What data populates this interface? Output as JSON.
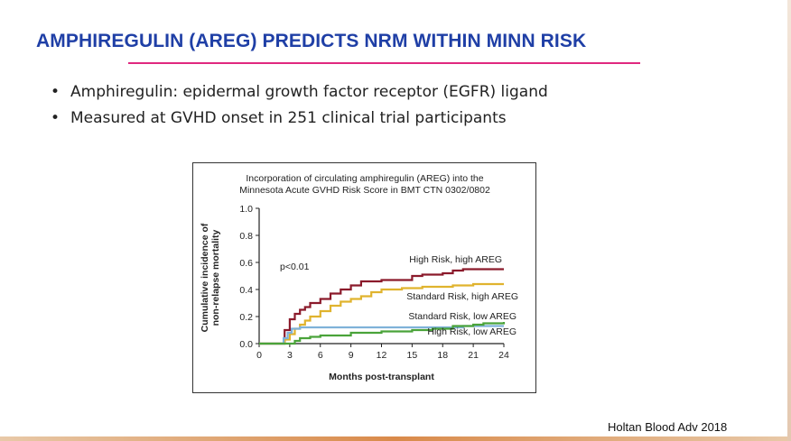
{
  "slide": {
    "title": "AMPHIREGULIN (AREG) PREDICTS NRM WITHIN MINN RISK",
    "bullets": [
      "Amphiregulin: epidermal growth factor receptor (EGFR) ligand",
      "Measured at GVHD onset in 251 clinical trial participants"
    ],
    "citation": "Holtan Blood Adv 2018"
  },
  "colors": {
    "title": "#1f3fa6",
    "underline": "#e0287f"
  },
  "chart_data": {
    "type": "line",
    "step": true,
    "title_lines": [
      "Incorporation of circulating amphiregulin (AREG) into the",
      "Minnesota Acute GVHD Risk Score in BMT CTN 0302/0802"
    ],
    "xlabel": "Months post-transplant",
    "ylabel_lines": [
      "Cumulative incidence of",
      "non-relapse mortality"
    ],
    "xlim": [
      0,
      24
    ],
    "ylim": [
      0,
      1.0
    ],
    "xticks": [
      0,
      3,
      6,
      9,
      12,
      15,
      18,
      21,
      24
    ],
    "yticks": [
      0.0,
      0.2,
      0.4,
      0.6,
      0.8,
      1.0
    ],
    "ytick_labels": [
      "0.0",
      "0.2",
      "0.4",
      "0.6",
      "0.8",
      "1.0"
    ],
    "grid": false,
    "annotation": "p<0.01",
    "series": [
      {
        "name": "High Risk, high AREG",
        "color": "#8b1a2b",
        "points": [
          [
            0,
            0
          ],
          [
            2,
            0
          ],
          [
            2.5,
            0.1
          ],
          [
            3,
            0.18
          ],
          [
            3.5,
            0.22
          ],
          [
            4,
            0.25
          ],
          [
            4.5,
            0.27
          ],
          [
            5,
            0.3
          ],
          [
            6,
            0.33
          ],
          [
            7,
            0.37
          ],
          [
            8,
            0.4
          ],
          [
            9,
            0.43
          ],
          [
            10,
            0.46
          ],
          [
            12,
            0.47
          ],
          [
            14,
            0.47
          ],
          [
            15,
            0.5
          ],
          [
            16,
            0.51
          ],
          [
            18,
            0.52
          ],
          [
            19,
            0.54
          ],
          [
            20,
            0.55
          ],
          [
            24,
            0.55
          ]
        ]
      },
      {
        "name": "Standard Risk, high AREG",
        "color": "#e0b32e",
        "points": [
          [
            0,
            0
          ],
          [
            2,
            0
          ],
          [
            2.5,
            0.03
          ],
          [
            3,
            0.07
          ],
          [
            3.5,
            0.11
          ],
          [
            4,
            0.14
          ],
          [
            4.5,
            0.17
          ],
          [
            5,
            0.2
          ],
          [
            6,
            0.24
          ],
          [
            7,
            0.28
          ],
          [
            8,
            0.31
          ],
          [
            9,
            0.33
          ],
          [
            10,
            0.35
          ],
          [
            11,
            0.38
          ],
          [
            12,
            0.4
          ],
          [
            14,
            0.41
          ],
          [
            16,
            0.42
          ],
          [
            18,
            0.42
          ],
          [
            19,
            0.43
          ],
          [
            21,
            0.44
          ],
          [
            24,
            0.44
          ]
        ]
      },
      {
        "name": "Standard Risk, low AREG",
        "color": "#7fb2d9",
        "points": [
          [
            0,
            0
          ],
          [
            2,
            0
          ],
          [
            2.4,
            0.04
          ],
          [
            2.8,
            0.08
          ],
          [
            3.2,
            0.11
          ],
          [
            4,
            0.12
          ],
          [
            9,
            0.12
          ],
          [
            12,
            0.12
          ],
          [
            15,
            0.12
          ],
          [
            18,
            0.12
          ],
          [
            20,
            0.13
          ],
          [
            24,
            0.13
          ]
        ]
      },
      {
        "name": "High Risk, low AREG",
        "color": "#4aa33a",
        "points": [
          [
            0,
            0
          ],
          [
            3,
            0
          ],
          [
            3.5,
            0.02
          ],
          [
            4,
            0.04
          ],
          [
            5,
            0.05
          ],
          [
            6,
            0.06
          ],
          [
            9,
            0.08
          ],
          [
            12,
            0.09
          ],
          [
            15,
            0.1
          ],
          [
            17,
            0.11
          ],
          [
            19,
            0.13
          ],
          [
            21,
            0.14
          ],
          [
            22,
            0.15
          ],
          [
            24,
            0.16
          ]
        ]
      }
    ]
  }
}
